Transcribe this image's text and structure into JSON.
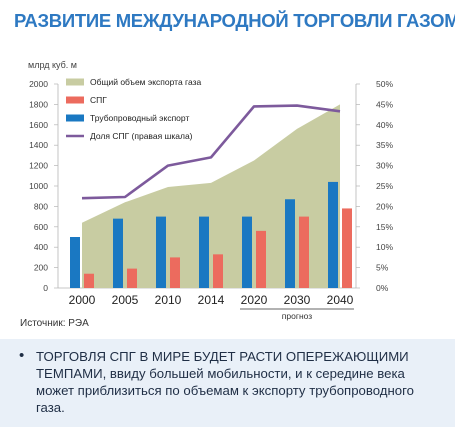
{
  "header": {
    "title": "РАЗВИТИЕ МЕЖДУНАРОДНОЙ ТОРГОВЛИ ГАЗОМ"
  },
  "source": "Источник: РЭА",
  "note": {
    "bullet": "•",
    "text": "ТОРГОВЛЯ СПГ В МИРЕ БУДЕТ РАСТИ ОПЕРЕЖАЮЩИМИ ТЕМПАМИ, ввиду большей мобильности, и к середине века может приблизиться по объемам к экспорту трубопроводного газа."
  },
  "chart_data": {
    "type": "bar",
    "ylabel": "млрд куб. м",
    "ylim": [
      0,
      2000
    ],
    "y_ticks": [
      "0",
      "200",
      "400",
      "600",
      "800",
      "1000",
      "1200",
      "1400",
      "1600",
      "1800",
      "2000"
    ],
    "y2lim": [
      0,
      50
    ],
    "y2_ticks": [
      "0%",
      "5%",
      "10%",
      "15%",
      "20%",
      "25%",
      "30%",
      "35%",
      "40%",
      "45%",
      "50%"
    ],
    "categories": [
      "2000",
      "2005",
      "2010",
      "2014",
      "2020",
      "2030",
      "2040"
    ],
    "forecast_label": "прогноз",
    "forecast_categories": [
      "2020",
      "2030",
      "2040"
    ],
    "legend_position": "top-left",
    "series": [
      {
        "name": "Общий объем экспорта газа",
        "kind": "area",
        "axis": "left",
        "color": "#c8cca2",
        "values": [
          640,
          840,
          990,
          1030,
          1250,
          1560,
          1800
        ]
      },
      {
        "name": "СПГ",
        "kind": "bar",
        "axis": "left",
        "color": "#ec6b5e",
        "values": [
          140,
          190,
          300,
          330,
          560,
          700,
          780
        ]
      },
      {
        "name": "Трубопроводный экспорт",
        "kind": "bar",
        "axis": "left",
        "color": "#1a78c2",
        "values": [
          500,
          680,
          700,
          700,
          700,
          870,
          1040
        ]
      },
      {
        "name": "Доля СПГ (правая шкала)",
        "kind": "line",
        "axis": "right",
        "color": "#7d5a9c",
        "values": [
          22,
          22.3,
          30,
          32,
          44.5,
          44.7,
          43.3
        ]
      }
    ]
  }
}
